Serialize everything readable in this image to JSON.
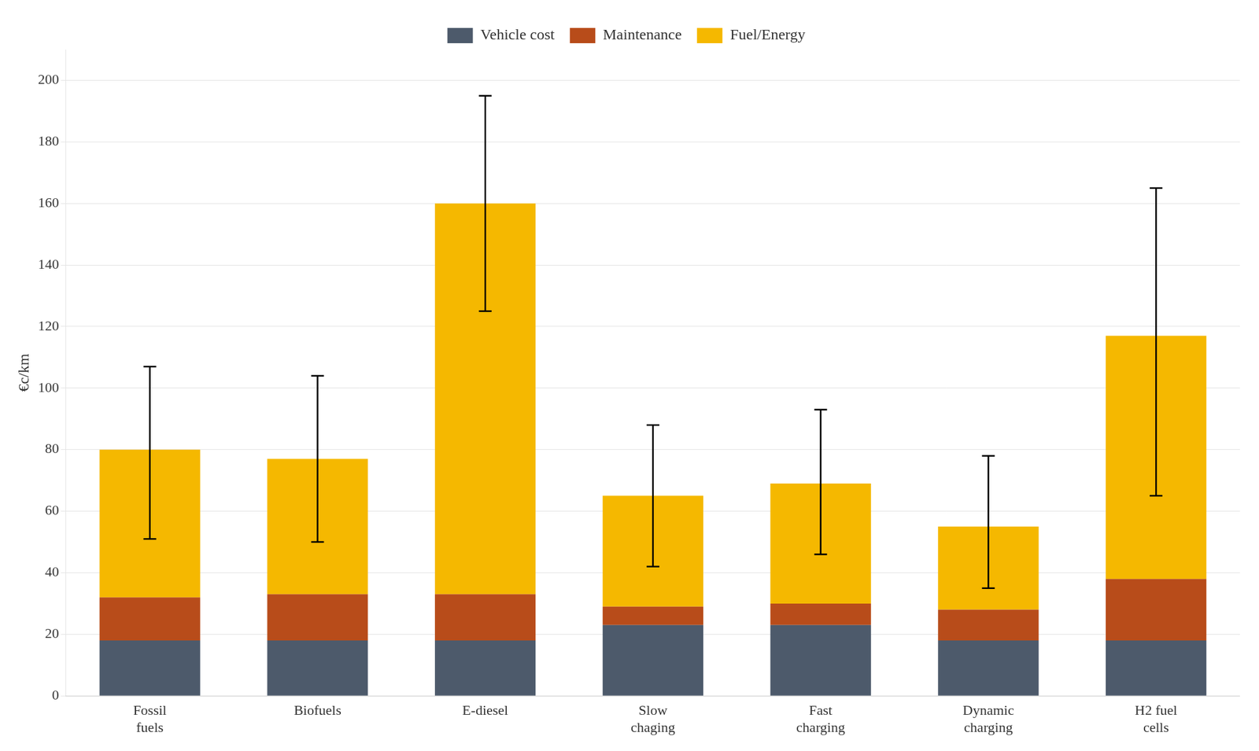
{
  "chart_data": {
    "type": "bar",
    "stacked": true,
    "ylabel": "€c/km",
    "categories": [
      "Fossil\nfuels",
      "Biofuels",
      "E-diesel",
      "Slow\nchaging",
      "Fast\ncharging",
      "Dynamic\ncharging",
      "H2 fuel\ncells"
    ],
    "series": [
      {
        "name": "Vehicle cost",
        "color": "#4d5a6b",
        "values": [
          18,
          18,
          18,
          23,
          23,
          18,
          18
        ]
      },
      {
        "name": "Maintenance",
        "color": "#b84c1a",
        "values": [
          14,
          15,
          15,
          6,
          7,
          10,
          20
        ]
      },
      {
        "name": "Fuel/Energy",
        "color": "#f5b800",
        "values": [
          48,
          44,
          127,
          36,
          39,
          27,
          79
        ]
      }
    ],
    "error_upper": [
      107,
      104,
      195,
      88,
      93,
      78,
      165
    ],
    "error_lower": [
      51,
      50,
      125,
      42,
      46,
      35,
      65
    ],
    "ylim": [
      0,
      210
    ],
    "yticks": [
      0,
      20,
      40,
      60,
      80,
      100,
      120,
      140,
      160,
      180,
      200
    ],
    "grid": true,
    "legend": "top"
  }
}
